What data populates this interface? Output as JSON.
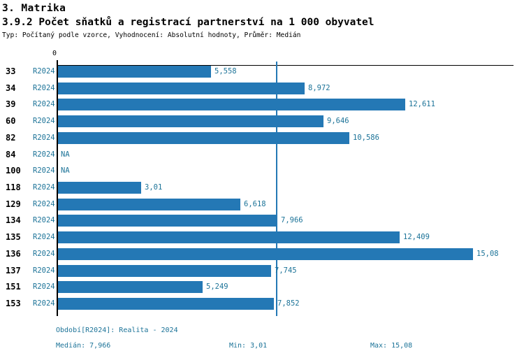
{
  "header": {
    "section": "3. Matrika",
    "title": "3.9.2 Počet sňatků a registrací partnerství na 1 000 obyvatel",
    "subtitle": "Typ: Počítaný podle vzorce, Vyhodnocení: Absolutní hodnoty, Průměr: Medián"
  },
  "chart_data": {
    "type": "bar",
    "orientation": "horizontal",
    "title": "3.9.2 Počet sňatků a registrací partnerství na 1 000 obyvatel",
    "series_name": "R2024",
    "categories": [
      "33",
      "34",
      "39",
      "60",
      "82",
      "84",
      "100",
      "118",
      "129",
      "134",
      "135",
      "136",
      "137",
      "151",
      "153"
    ],
    "values": [
      5.558,
      8.972,
      12.611,
      9.646,
      10.586,
      null,
      null,
      3.01,
      6.618,
      7.966,
      12.409,
      15.08,
      7.745,
      5.249,
      7.852
    ],
    "value_labels": [
      "5,558",
      "8,972",
      "12,611",
      "9,646",
      "10,586",
      "NA",
      "NA",
      "3,01",
      "6,618",
      "7,966",
      "12,409",
      "15,08",
      "7,745",
      "5,249",
      "7,852"
    ],
    "na_label": "NA",
    "zero_label": "0",
    "xlim": [
      0,
      16.6
    ],
    "grid": false,
    "median_value": 7.966,
    "min_value": 3.01,
    "max_value": 15.08
  },
  "footer": {
    "period": "Období[R2024]: Realita - 2024",
    "median": "Medián: 7,966",
    "min": "Min: 3,01",
    "max": "Max: 15,08"
  },
  "colors": {
    "bar": "#2478b5",
    "blue_text": "#1c7398",
    "axis": "#000000"
  }
}
